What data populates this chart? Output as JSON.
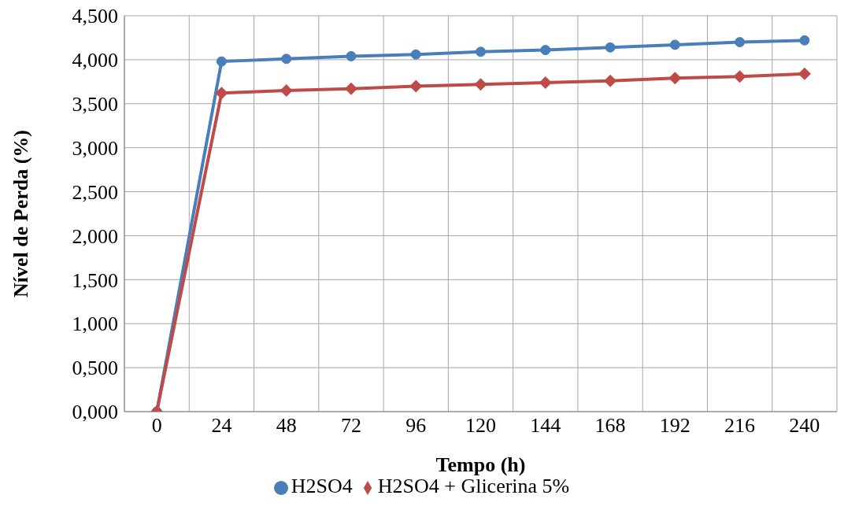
{
  "chart_data": {
    "type": "line",
    "xlabel": "Tempo (h)",
    "ylabel": "Nível de Perda (%)",
    "categories": [
      "0",
      "24",
      "48",
      "72",
      "96",
      "120",
      "144",
      "168",
      "192",
      "216",
      "240"
    ],
    "series": [
      {
        "name": "H2SO4",
        "color": "#4a7ebb",
        "marker": "circle",
        "values": [
          0,
          3.98,
          4.01,
          4.04,
          4.06,
          4.09,
          4.11,
          4.14,
          4.17,
          4.2,
          4.22
        ]
      },
      {
        "name": "H2SO4 + Glicerina 5%",
        "color": "#be4b48",
        "marker": "diamond",
        "values": [
          0,
          3.62,
          3.65,
          3.67,
          3.7,
          3.72,
          3.74,
          3.76,
          3.79,
          3.81,
          3.84
        ]
      }
    ],
    "ylim": [
      0,
      4.5
    ],
    "yticks": [
      {
        "value": 0,
        "label": "0,000"
      },
      {
        "value": 0.5,
        "label": "0,500"
      },
      {
        "value": 1,
        "label": "1,000"
      },
      {
        "value": 1.5,
        "label": "1,500"
      },
      {
        "value": 2,
        "label": "2,000"
      },
      {
        "value": 2.5,
        "label": "2,500"
      },
      {
        "value": 3,
        "label": "3,000"
      },
      {
        "value": 3.5,
        "label": "3,500"
      },
      {
        "value": 4,
        "label": "4,000"
      },
      {
        "value": 4.5,
        "label": "4,500"
      }
    ],
    "grid": true,
    "legend": "bottom",
    "line_style": "solid"
  }
}
